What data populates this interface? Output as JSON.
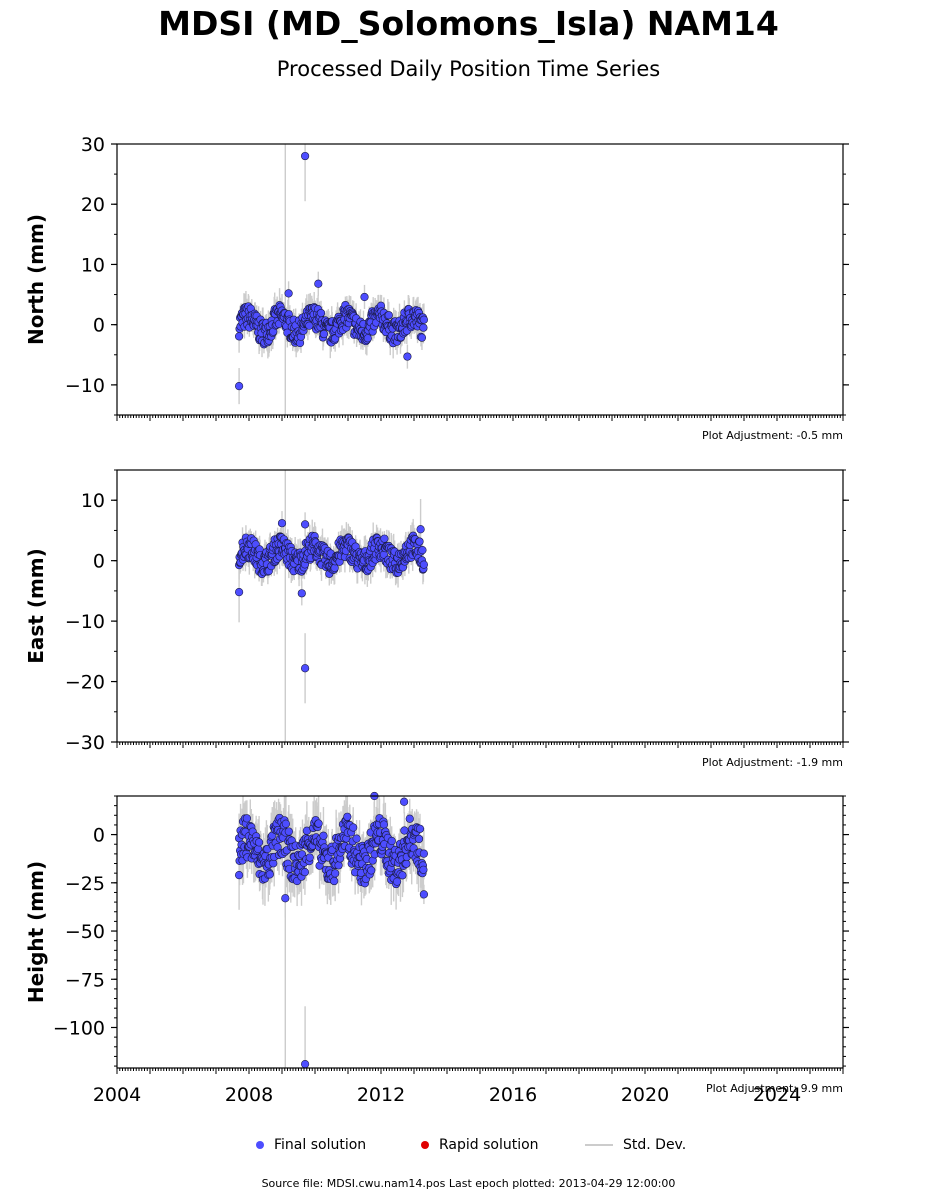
{
  "title": "MDSI (MD_Solomons_Isla) NAM14",
  "subtitle": "Processed Daily Position Time Series",
  "colors": {
    "final": "#4d4dff",
    "rapid": "#e00000",
    "stddev": "#cccccc",
    "marker_edge": "#1a1a40"
  },
  "legend": {
    "final_label": "Final solution",
    "rapid_label": "Rapid solution",
    "std_label": "Std. Dev."
  },
  "source_text": "Source file: MDSI.cwu.nam14.pos  Last epoch plotted: 2013-04-29 12:00:00",
  "chart_data": [
    {
      "type": "scatter",
      "ylabel": "North (mm)",
      "adjustment": "Plot Adjustment: -0.5 mm",
      "xlim": [
        2004,
        2026
      ],
      "ylim": [
        -15,
        30
      ],
      "yticks": [
        -10,
        0,
        10,
        20,
        30
      ],
      "ytick_labels": [
        "−10",
        "0",
        "10",
        "20",
        "30"
      ],
      "x_start": 2007.7,
      "x_end": 2013.3,
      "band": [
        -3,
        3
      ],
      "outliers": [
        {
          "x": 2009.7,
          "y": 28,
          "err": 7.5
        },
        {
          "x": 2007.7,
          "y": -10.2,
          "err": 3
        },
        {
          "x": 2010.1,
          "y": 6.8,
          "err": 2
        },
        {
          "x": 2009.2,
          "y": 5.2,
          "err": 2
        },
        {
          "x": 2011.5,
          "y": 4.6,
          "err": 2
        },
        {
          "x": 2012.8,
          "y": -5.3,
          "err": 2
        }
      ]
    },
    {
      "type": "scatter",
      "ylabel": "East (mm)",
      "adjustment": "Plot Adjustment: -1.9 mm",
      "xlim": [
        2004,
        2026
      ],
      "ylim": [
        -30,
        15
      ],
      "yticks": [
        -30,
        -20,
        -10,
        0,
        10
      ],
      "ytick_labels": [
        "−30",
        "−20",
        "−10",
        "0",
        "10"
      ],
      "x_start": 2007.7,
      "x_end": 2013.3,
      "band": [
        -2,
        4
      ],
      "outliers": [
        {
          "x": 2009.7,
          "y": -17.8,
          "err": 5.8
        },
        {
          "x": 2009.6,
          "y": -5.4,
          "err": 2
        },
        {
          "x": 2007.7,
          "y": -5.2,
          "err": 5
        },
        {
          "x": 2009.0,
          "y": 6.2,
          "err": 2
        },
        {
          "x": 2009.7,
          "y": 6.0,
          "err": 2
        },
        {
          "x": 2013.2,
          "y": 5.2,
          "err": 5
        }
      ]
    },
    {
      "type": "scatter",
      "ylabel": "Height (mm)",
      "adjustment": "Plot Adjustment: 9.9 mm",
      "xlim": [
        2004,
        2026
      ],
      "ylim": [
        -121,
        20
      ],
      "yticks": [
        -100,
        -75,
        -50,
        -25,
        0
      ],
      "ytick_labels": [
        "−100",
        "−75",
        "−50",
        "−25",
        "0"
      ],
      "xticks": [
        2004,
        2008,
        2012,
        2016,
        2020,
        2024
      ],
      "xtick_labels": [
        "2004",
        "2008",
        "2012",
        "2016",
        "2020",
        "2024"
      ],
      "x_start": 2007.7,
      "x_end": 2013.3,
      "band": [
        -25,
        8
      ],
      "outliers": [
        {
          "x": 2009.7,
          "y": -119,
          "err": 30
        },
        {
          "x": 2009.1,
          "y": -33,
          "err": 10
        },
        {
          "x": 2007.7,
          "y": -21,
          "err": 18
        },
        {
          "x": 2011.8,
          "y": 20,
          "err": 6
        },
        {
          "x": 2012.7,
          "y": 17,
          "err": 6
        },
        {
          "x": 2013.3,
          "y": -31,
          "err": 5
        }
      ]
    }
  ]
}
